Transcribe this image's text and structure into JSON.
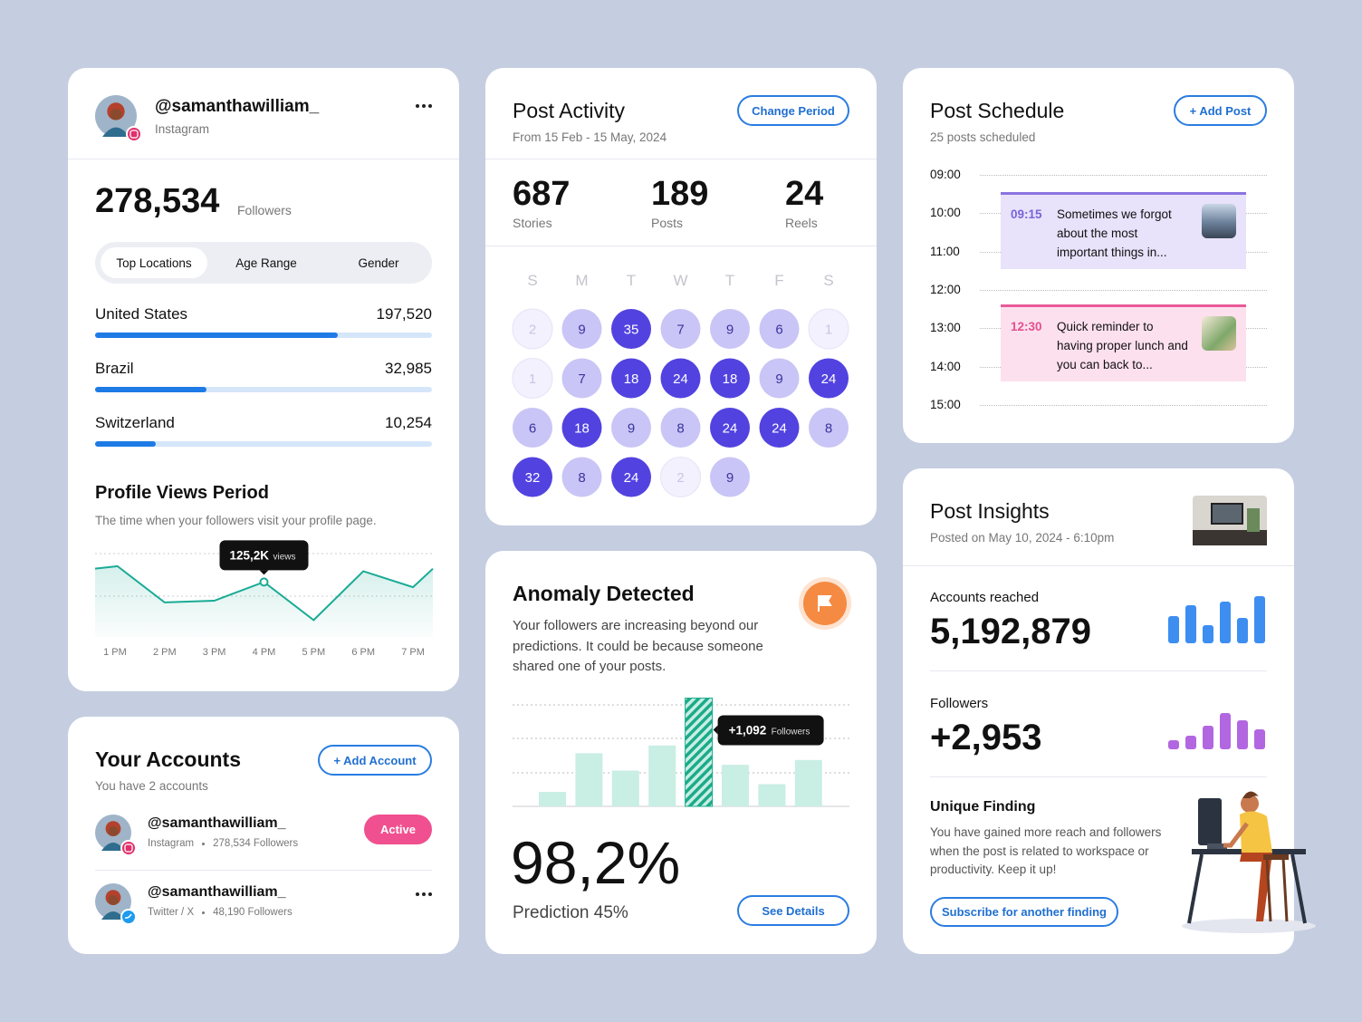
{
  "profile": {
    "handle": "@samanthawilliam_",
    "platform": "Instagram",
    "followers": "278,534",
    "followers_label": "Followers",
    "tabs": [
      "Top Locations",
      "Age Range",
      "Gender"
    ],
    "locations": [
      {
        "name": "United States",
        "value": "197,520",
        "bar": 72
      },
      {
        "name": "Brazil",
        "value": "32,985",
        "bar": 33
      },
      {
        "name": "Switzerland",
        "value": "10,254",
        "bar": 18
      }
    ]
  },
  "profile_views": {
    "title": "Profile Views Period",
    "subtitle": "The time when your followers visit your profile page.",
    "chart_data": {
      "type": "line",
      "x": [
        12.6,
        13.05,
        14,
        15,
        16,
        17,
        18,
        19,
        19.4
      ],
      "values": [
        141,
        144,
        101,
        103,
        125.2,
        80,
        138,
        119,
        141
      ],
      "value_labels": [
        null,
        null,
        null,
        null,
        "125,2K",
        null,
        null,
        null,
        null
      ],
      "value_label_unit": "views",
      "xlim": [
        12.6,
        19.4
      ],
      "ylim": [
        60,
        160
      ],
      "color": "#1aab95",
      "xticks": [
        {
          "value": 13,
          "label": "1 PM"
        },
        {
          "value": 14,
          "label": "2 PM"
        },
        {
          "value": 15,
          "label": "3 PM"
        },
        {
          "value": 16,
          "label": "4 PM"
        },
        {
          "value": 17,
          "label": "5 PM"
        },
        {
          "value": 18,
          "label": "6 PM"
        },
        {
          "value": 19,
          "label": "7 PM"
        }
      ]
    }
  },
  "accounts": {
    "title": "Your Accounts",
    "subtitle": "You have 2 accounts",
    "button": "+ Add Account",
    "list": [
      {
        "handle": "@samanthawilliam_",
        "platform": "Instagram",
        "followers": "278,534 Followers",
        "status": "Active"
      },
      {
        "handle": "@samanthawilliam_",
        "platform": "Twitter / X",
        "followers": "48,190 Followers"
      }
    ]
  },
  "post_activity": {
    "title": "Post Activity",
    "subtitle": "From 15 Feb - 15 May, 2024",
    "button": "Change Period",
    "stats": [
      {
        "value": "687",
        "label": "Stories"
      },
      {
        "value": "189",
        "label": "Posts"
      },
      {
        "value": "24",
        "label": "Reels"
      }
    ],
    "weekdays": [
      "S",
      "M",
      "T",
      "W",
      "T",
      "F",
      "S"
    ],
    "calendar": [
      [
        2,
        9,
        35,
        7,
        9,
        6,
        1
      ],
      [
        1,
        7,
        18,
        24,
        18,
        9,
        24
      ],
      [
        6,
        18,
        9,
        8,
        24,
        24,
        8
      ],
      [
        32,
        8,
        24,
        2,
        9
      ]
    ]
  },
  "anomaly": {
    "title": "Anomaly Detected",
    "text": "Your followers are increasing beyond our predictions. It could be because someone shared one of your posts.",
    "chart_data": {
      "type": "bar",
      "categories": [
        null,
        null,
        null,
        null,
        null,
        null,
        null,
        null
      ],
      "values": [
        146,
        536,
        361,
        614,
        1092,
        419,
        224,
        468
      ],
      "value_labels": [
        null,
        null,
        null,
        null,
        "+1,092",
        null,
        null,
        null
      ],
      "value_label_unit": "Followers",
      "ylim": [
        0,
        1170
      ],
      "color": "#c9eee4",
      "highlight_color": "#1aab8a"
    },
    "value": "98,2%",
    "prediction": "Prediction 45%",
    "button": "See Details"
  },
  "schedule": {
    "title": "Post Schedule",
    "subtitle": "25 posts scheduled",
    "button": "+ Add Post",
    "times": [
      "09:00",
      "10:00",
      "11:00",
      "12:00",
      "13:00",
      "14:00",
      "15:00"
    ],
    "events": [
      {
        "time": "09:15",
        "text": "Sometimes we forgot about the most important things in..."
      },
      {
        "time": "12:30",
        "text": "Quick reminder to having proper lunch and you can back to..."
      }
    ]
  },
  "insights": {
    "title": "Post Insights",
    "subtitle": "Posted on May 10, 2024 - 6:10pm",
    "metrics": [
      {
        "label": "Accounts reached",
        "value": "5,192,879",
        "chart_data": {
          "type": "bar",
          "values": [
            30,
            42,
            20,
            46,
            28,
            52
          ],
          "ylim": [
            0,
            52
          ],
          "color": "#3d8ef0"
        }
      },
      {
        "label": "Followers",
        "value": "+2,953",
        "chart_data": {
          "type": "bar",
          "values": [
            10,
            15,
            26,
            40,
            32,
            22
          ],
          "ylim": [
            0,
            40
          ],
          "color": "#b267e0"
        }
      }
    ],
    "finding": {
      "title": "Unique Finding",
      "text": "You have gained more reach and followers when the post is related to workspace or productivity. Keep it up!",
      "button": "Subscribe for another finding"
    }
  }
}
